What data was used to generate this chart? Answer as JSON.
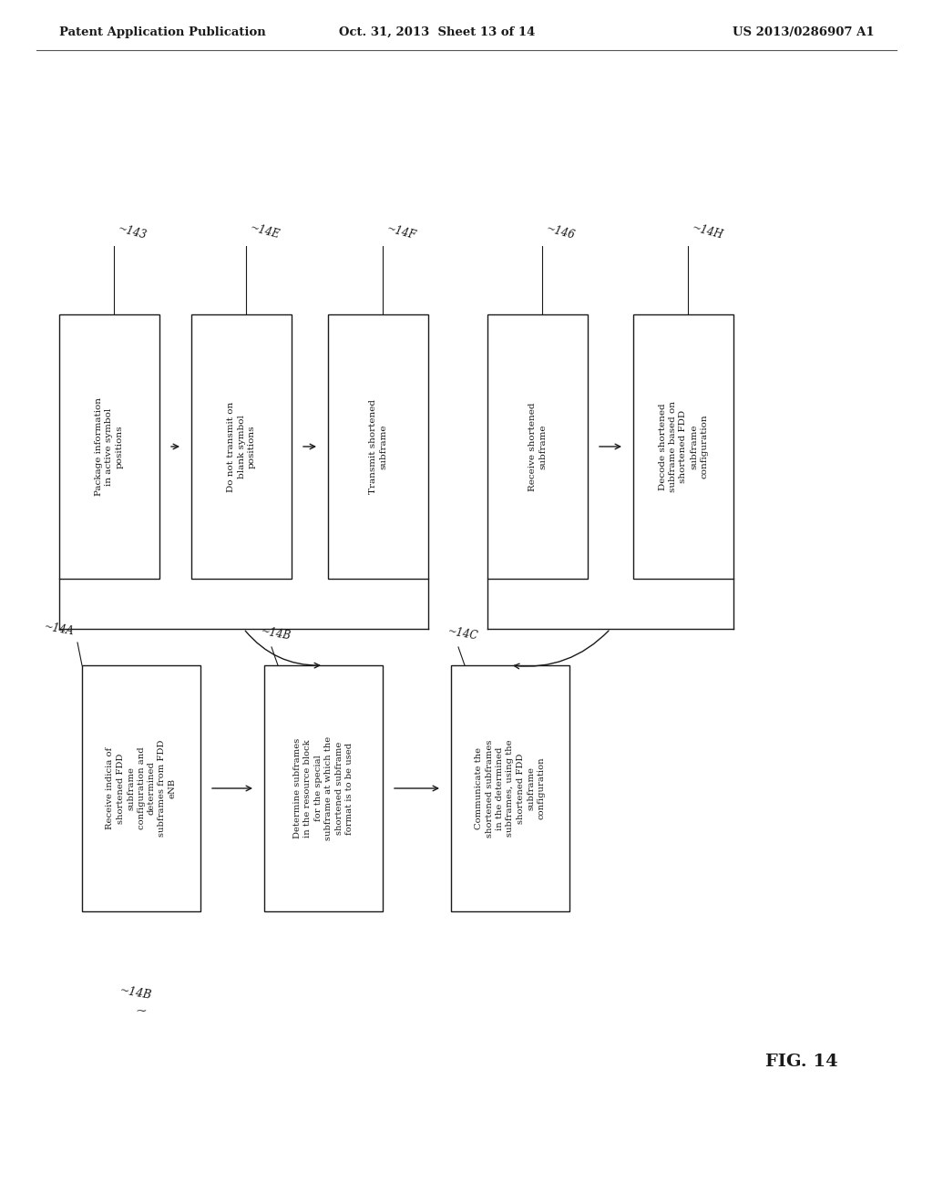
{
  "header_left": "Patent Application Publication",
  "header_center": "Oct. 31, 2013  Sheet 13 of 14",
  "header_right": "US 2013/0286907 A1",
  "fig_label": "FIG. 14",
  "bg_color": "#ffffff",
  "text_color": "#1a1a1a",
  "top_boxes": [
    {
      "label": "Package information\nin active symbol\npositions",
      "ref": "~143"
    },
    {
      "label": "Do not transmit on\nblank symbol\npositions",
      "ref": "~14E"
    },
    {
      "label": "Transmit shortened\nsubframe",
      "ref": "~14F"
    },
    {
      "label": "Receive shortened\nsubframe",
      "ref": "~146"
    },
    {
      "label": "Decode shortened\nsubframe based on\nshortened FDD\nsubframe\nconfiguration",
      "ref": "~14H"
    }
  ],
  "bottom_boxes": [
    {
      "label": "Receive indicia of\nshortened FDD\nsubframe\nconfiguration and\ndetermined\nsubframes from FDD\neNB",
      "ref": "~14A"
    },
    {
      "label": "Determine subframes\nin the resource block\nfor the special\nsubframe at which the\nshortened subframe\nformat is to be used",
      "ref": "~14B"
    },
    {
      "label": "Communicate the\nshortened subframes\nin the determined\nsubframes, using the\nshortened FDD\nsubframe\nconfiguration",
      "ref": "~14C"
    }
  ],
  "extra_ref": "~14B"
}
